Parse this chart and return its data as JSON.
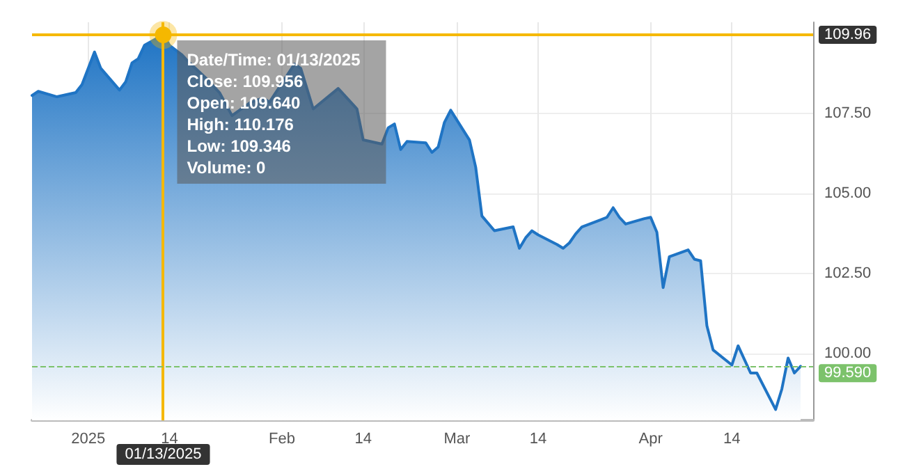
{
  "chart_data": {
    "type": "area",
    "x": [
      "2024-12-23",
      "2024-12-24",
      "2024-12-27",
      "2024-12-30",
      "2024-12-31",
      "2025-01-02",
      "2025-01-03",
      "2025-01-06",
      "2025-01-07",
      "2025-01-08",
      "2025-01-09",
      "2025-01-10",
      "2025-01-13",
      "2025-01-14",
      "2025-01-16",
      "2025-01-17",
      "2025-01-20",
      "2025-01-22",
      "2025-01-24",
      "2025-01-27",
      "2025-01-29",
      "2025-01-30",
      "2025-02-03",
      "2025-02-04",
      "2025-02-06",
      "2025-02-10",
      "2025-02-13",
      "2025-02-14",
      "2025-02-17",
      "2025-02-18",
      "2025-02-19",
      "2025-02-20",
      "2025-02-21",
      "2025-02-24",
      "2025-02-25",
      "2025-02-26",
      "2025-02-27",
      "2025-02-28",
      "2025-03-03",
      "2025-03-04",
      "2025-03-05",
      "2025-03-07",
      "2025-03-10",
      "2025-03-11",
      "2025-03-12",
      "2025-03-13",
      "2025-03-14",
      "2025-03-17",
      "2025-03-18",
      "2025-03-19",
      "2025-03-20",
      "2025-03-21",
      "2025-03-24",
      "2025-03-25",
      "2025-03-26",
      "2025-03-27",
      "2025-03-28",
      "2025-03-31",
      "2025-04-01",
      "2025-04-02",
      "2025-04-03",
      "2025-04-04",
      "2025-04-07",
      "2025-04-08",
      "2025-04-09",
      "2025-04-10",
      "2025-04-11",
      "2025-04-14",
      "2025-04-15",
      "2025-04-17",
      "2025-04-18",
      "2025-04-21",
      "2025-04-22",
      "2025-04-23",
      "2025-04-24",
      "2025-04-25"
    ],
    "series": [
      {
        "color": "#1f74c4",
        "values": [
          108.06,
          108.19,
          108.02,
          108.15,
          108.4,
          109.42,
          108.91,
          108.23,
          108.49,
          109.08,
          109.21,
          109.63,
          109.956,
          109.63,
          109.33,
          109.12,
          108.57,
          108.15,
          107.43,
          107.85,
          107.98,
          107.85,
          109.04,
          108.91,
          107.64,
          108.28,
          107.64,
          106.67,
          106.54,
          107.05,
          107.17,
          106.37,
          106.62,
          106.58,
          106.28,
          106.45,
          107.22,
          107.6,
          106.67,
          105.82,
          104.29,
          103.83,
          103.95,
          103.28,
          103.61,
          103.83,
          103.7,
          103.4,
          103.28,
          103.45,
          103.73,
          103.95,
          104.17,
          104.25,
          104.55,
          104.25,
          104.04,
          104.21,
          104.25,
          103.78,
          102.05,
          103.02,
          103.23,
          102.94,
          102.89,
          100.86,
          100.1,
          99.63,
          100.23,
          99.38,
          99.38,
          98.24,
          98.88,
          99.85,
          99.38,
          99.59
        ]
      }
    ],
    "xlim": [
      "2024-12-23",
      "2025-04-27"
    ],
    "xticks": [
      {
        "value": "2025-01-01",
        "label": "2025"
      },
      {
        "value": "2025-01-14",
        "label": "14"
      },
      {
        "value": "2025-02-01",
        "label": "Feb"
      },
      {
        "value": "2025-02-14",
        "label": "14"
      },
      {
        "value": "2025-03-01",
        "label": "Mar"
      },
      {
        "value": "2025-03-14",
        "label": "14"
      },
      {
        "value": "2025-04-01",
        "label": "Apr"
      },
      {
        "value": "2025-04-14",
        "label": "14"
      }
    ],
    "ylim": [
      97.9,
      110.35
    ],
    "yticks": [
      {
        "value": 100,
        "label": "100.00"
      },
      {
        "value": 102.5,
        "label": "102.50"
      },
      {
        "value": 105,
        "label": "105.00"
      },
      {
        "value": 107.5,
        "label": "107.50"
      }
    ],
    "grid": true,
    "marker": "none",
    "ref_lines": [
      {
        "axis": "y",
        "value": 109.956,
        "label": "109.96",
        "color": "#f5b800"
      },
      {
        "axis": "x",
        "value": "2025-01-13",
        "label": "01/13/2025",
        "color": "#f5b800"
      },
      {
        "axis": "y",
        "value": 99.59,
        "label": "99.590",
        "color": "#7cc26b",
        "line_style": "dashed"
      }
    ],
    "annotations": [
      {
        "text": "Date/Time: 01/13/2025\nClose: 109.956\nOpen: 109.640\nHigh: 110.176\nLow: 109.346\nVolume: 0",
        "x": "2025-01-13",
        "y": 109.956
      }
    ]
  }
}
